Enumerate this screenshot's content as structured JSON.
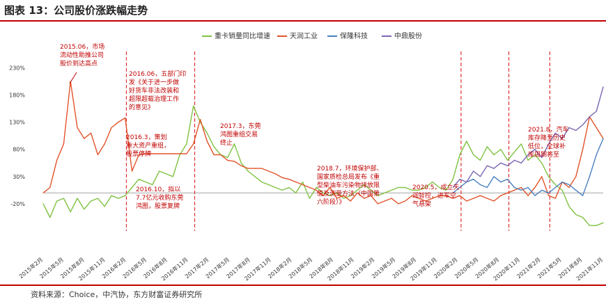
{
  "title": "图表 13：公司股价涨跌幅走势",
  "source": "资料来源：Choice，中汽协，东方财富证券研究所",
  "chart_data": {
    "type": "line",
    "ylim": [
      -70,
      260
    ],
    "yticks": [
      "-20%",
      "30%",
      "80%",
      "130%",
      "180%",
      "230%"
    ],
    "ytick_values": [
      -20,
      30,
      80,
      130,
      180,
      230
    ],
    "x_labels": [
      "2015年2月",
      "2015年5月",
      "2015年8月",
      "2015年11月",
      "2016年2月",
      "2016年5月",
      "2016年8月",
      "2016年11月",
      "2017年2月",
      "2017年5月",
      "2017年8月",
      "2017年11月",
      "2018年2月",
      "2018年5月",
      "2018年8月",
      "2018年11月",
      "2019年2月",
      "2019年5月",
      "2019年8月",
      "2019年11月",
      "2020年2月",
      "2020年5月",
      "2020年8月",
      "2020年11月",
      "2021年2月",
      "2021年5月",
      "2021年8月",
      "2021年11月"
    ],
    "legend_position": "top",
    "series": [
      {
        "name": "重卡销量同比增速",
        "color": "#7fc241",
        "x": [
          0,
          1,
          2,
          3,
          4,
          5,
          6,
          7,
          8,
          9,
          10,
          11,
          12,
          13,
          14,
          15,
          16,
          17,
          18,
          19,
          20,
          21,
          22,
          23,
          24,
          25,
          26,
          27,
          28,
          29,
          30,
          31,
          32,
          33,
          34,
          35,
          36,
          37,
          38,
          39,
          40,
          41,
          42,
          43,
          44,
          45,
          46,
          47,
          48,
          49,
          50,
          51,
          52,
          53,
          54,
          55,
          56,
          57,
          58,
          59,
          60,
          61,
          62,
          63,
          64,
          65,
          66,
          67,
          68,
          69,
          70,
          71,
          72,
          73,
          74,
          75,
          76,
          77,
          78,
          79,
          80,
          81,
          82
        ],
        "values": [
          -20,
          -45,
          -15,
          -10,
          -35,
          -10,
          -30,
          -15,
          -10,
          -25,
          -5,
          -10,
          -5,
          10,
          25,
          20,
          15,
          40,
          35,
          30,
          70,
          90,
          160,
          130,
          110,
          85,
          70,
          65,
          90,
          55,
          40,
          30,
          20,
          15,
          10,
          5,
          10,
          0,
          20,
          -10,
          10,
          0,
          -5,
          0,
          -10,
          -5,
          5,
          15,
          5,
          -5,
          0,
          5,
          10,
          10,
          5,
          5,
          10,
          20,
          10,
          5,
          25,
          70,
          95,
          70,
          60,
          85,
          70,
          80,
          60,
          75,
          90,
          60,
          70,
          55,
          30,
          15,
          5,
          -25,
          -40,
          -45,
          -60,
          -60,
          -55
        ]
      },
      {
        "name": "天润工业",
        "color": "#e2532a",
        "x": [
          0,
          1,
          2,
          3,
          4,
          5,
          6,
          7,
          8,
          9,
          10,
          11,
          12,
          13,
          14,
          15,
          16,
          17,
          18,
          19,
          20,
          21,
          22,
          23,
          24,
          25,
          26,
          27,
          28,
          29,
          30,
          31,
          32,
          33,
          34,
          35,
          36,
          37,
          38,
          39,
          40,
          41,
          42,
          43,
          44,
          45,
          46,
          47,
          48,
          49,
          50,
          51,
          52,
          53,
          54,
          55,
          56,
          57,
          58,
          59,
          60,
          61,
          62,
          63,
          64,
          65,
          66,
          67,
          68,
          69,
          70,
          71,
          72,
          73,
          74,
          75,
          76,
          77,
          78,
          79,
          80,
          81,
          82
        ],
        "values": [
          0,
          10,
          60,
          90,
          205,
          120,
          100,
          110,
          70,
          90,
          120,
          130,
          138,
          40,
          70,
          72,
          72,
          72,
          72,
          72,
          72,
          72,
          90,
          135,
          95,
          70,
          70,
          60,
          58,
          50,
          45,
          45,
          45,
          40,
          35,
          28,
          25,
          20,
          15,
          10,
          5,
          -5,
          10,
          -10,
          -5,
          -15,
          0,
          -10,
          -5,
          -20,
          -15,
          -10,
          -20,
          -15,
          -5,
          -10,
          -15,
          -10,
          -5,
          -5,
          -10,
          -5,
          -15,
          -10,
          -5,
          -10,
          -15,
          -5,
          0,
          5,
          10,
          -5,
          10,
          30,
          -5,
          -10,
          20,
          10,
          30,
          80,
          140,
          120,
          100
        ]
      },
      {
        "name": "保隆科技",
        "color": "#4a7fc1",
        "x": [
          60,
          61,
          62,
          63,
          64,
          65,
          66,
          67,
          68,
          69,
          70,
          71,
          72,
          73,
          74,
          75,
          76,
          77,
          78,
          79,
          80,
          81,
          82
        ],
        "values": [
          0,
          10,
          20,
          25,
          15,
          10,
          30,
          20,
          25,
          10,
          5,
          10,
          -5,
          5,
          0,
          10,
          20,
          15,
          5,
          -5,
          30,
          70,
          100
        ]
      },
      {
        "name": "中鼎股份",
        "color": "#7b66b5",
        "x": [
          60,
          61,
          62,
          63,
          64,
          65,
          66,
          67,
          68,
          69,
          70,
          71,
          72,
          73,
          74,
          75,
          76,
          77,
          78,
          79,
          80,
          81,
          82
        ],
        "values": [
          10,
          25,
          20,
          40,
          30,
          50,
          45,
          55,
          50,
          60,
          55,
          70,
          80,
          65,
          90,
          110,
          100,
          120,
          115,
          125,
          140,
          150,
          195
        ]
      }
    ],
    "annotations": [
      {
        "lines": [
          "2015.06，市场",
          "流动性助推公司",
          "股价到达高点"
        ]
      },
      {
        "lines": [
          "2016.06，五部门印",
          "发《关于进一步做",
          "好货车非法改装和",
          "超限超载治理工作",
          "的意见》"
        ]
      },
      {
        "lines": [
          "2016.3，策划",
          "重大资产重组，",
          "股票停牌"
        ]
      },
      {
        "lines": [
          "2016.10，拟以",
          "7.7亿元收购东莞",
          "鸿图，股票复牌"
        ]
      },
      {
        "lines": [
          "2017.3，东莞",
          "鸿图重组交易",
          "终止"
        ]
      },
      {
        "lines": [
          "2018.7，环境保护部、",
          "国家质检总局发布《重",
          "型柴油车污染物排放限",
          "值及测量方法（中国第",
          "六阶段）》"
        ]
      },
      {
        "lines": [
          "2020.5，成立天",
          "润智控，进军空",
          "气悬架"
        ]
      },
      {
        "lines": [
          "2021.8，汽车",
          "库存降至历史",
          "低位，全球补",
          "库周期将至"
        ]
      }
    ]
  }
}
